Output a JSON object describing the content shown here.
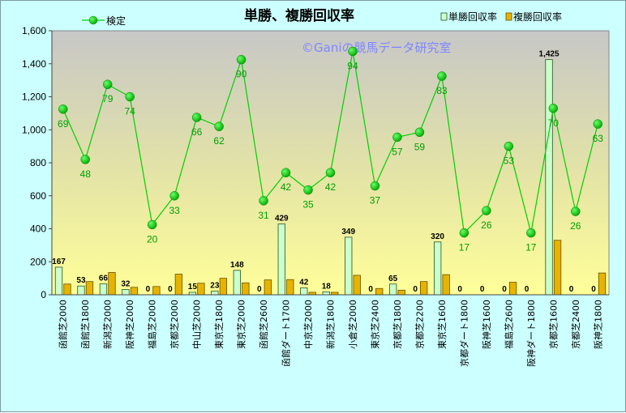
{
  "chart_data": {
    "type": "bar+line",
    "title": "単勝、複勝回収率",
    "watermark": "©Ganiの競馬データ研究室",
    "categories": [
      "函館芝2000",
      "函館芝1800",
      "新潟芝2000",
      "阪神芝2000",
      "福島芝2000",
      "京都芝2000",
      "中山芝2000",
      "東京芝1800",
      "東京芝2000",
      "函館芝2600",
      "函館ダート1700",
      "中京芝2000",
      "新潟芝1800",
      "小倉芝2000",
      "東京芝2400",
      "京都芝1800",
      "京都芝2200",
      "東京芝1600",
      "京都ダート1800",
      "阪神芝1600",
      "福島芝2600",
      "阪神ダート1800",
      "京都芝1600",
      "京都芝2400",
      "阪神芝1800"
    ],
    "series": [
      {
        "name": "単勝回収率",
        "kind": "bar",
        "color": "#ccffcc",
        "stroke": "#225522",
        "values": [
          167,
          53,
          66,
          32,
          0,
          0,
          15,
          23,
          148,
          0,
          429,
          42,
          18,
          349,
          0,
          65,
          0,
          320,
          0,
          0,
          0,
          0,
          1425,
          0,
          0
        ],
        "labels": [
          "167",
          "53",
          "66",
          "32",
          "0",
          "0",
          "15",
          "23",
          "148",
          "0",
          "429",
          "42",
          "18",
          "349",
          "0",
          "65",
          "0",
          "320",
          "0",
          "0",
          "0",
          "0",
          "1,425",
          "0",
          "0"
        ]
      },
      {
        "name": "複勝回収率",
        "kind": "bar",
        "color": "#e6b400",
        "stroke": "#6a5000",
        "values": [
          65,
          80,
          135,
          45,
          50,
          125,
          70,
          100,
          72,
          90,
          92,
          15,
          15,
          118,
          38,
          28,
          80,
          122,
          0,
          0,
          76,
          0,
          330,
          0,
          132
        ]
      },
      {
        "name": "検定",
        "kind": "line",
        "color": "#00d000",
        "values": [
          1125,
          820,
          1275,
          1200,
          425,
          600,
          1075,
          1020,
          1425,
          570,
          740,
          635,
          740,
          1475,
          660,
          955,
          985,
          1325,
          375,
          510,
          900,
          375,
          1130,
          505,
          1035
        ],
        "labels": [
          "69",
          "48",
          "79",
          "74",
          "20",
          "33",
          "66",
          "62",
          "90",
          "31",
          "42",
          "35",
          "42",
          "94",
          "37",
          "57",
          "59",
          "83",
          "17",
          "26",
          "53",
          "17",
          "70",
          "26",
          "63"
        ]
      }
    ],
    "ylim": [
      0,
      1600
    ],
    "yticks": [
      "0",
      "200",
      "400",
      "600",
      "800",
      "1,000",
      "1,200",
      "1,400",
      "1,600"
    ],
    "grid": false,
    "legend": {
      "line_position": "top-left",
      "bars_position": "top-right"
    }
  }
}
